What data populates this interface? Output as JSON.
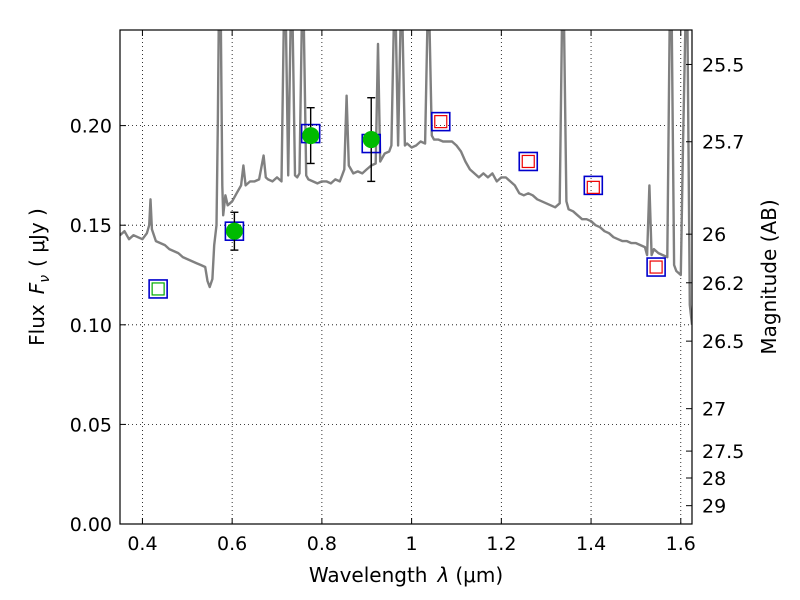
{
  "chart_data": {
    "type": "scatter",
    "xlabel": "Wavelength",
    "xlabel_symbol": "λ",
    "xlabel_unit": "(μm)",
    "ylabel": "Flux",
    "ylabel_symbol": "F",
    "ylabel_symbol_sub": "ν",
    "ylabel_unit": "( μJy )",
    "y2label": "Magnitude (AB)",
    "xlim": [
      0.35,
      1.625
    ],
    "ylim": [
      0.0,
      0.248
    ],
    "x_ticks": [
      0.4,
      0.6,
      0.8,
      1.0,
      1.2,
      1.4,
      1.6
    ],
    "x_tick_labels": [
      "0.4",
      "0.6",
      "0.8",
      "1",
      "1.2",
      "1.4",
      "1.6"
    ],
    "y_ticks": [
      0.0,
      0.05,
      0.1,
      0.15,
      0.2
    ],
    "y_tick_labels": [
      "0.00",
      "0.05",
      "0.10",
      "0.15",
      "0.20"
    ],
    "y2_ticks": [
      {
        "label": "25.5",
        "flux": 0.2307
      },
      {
        "label": "25.7",
        "flux": 0.1919
      },
      {
        "label": "26",
        "flux": 0.1455
      },
      {
        "label": "26.2",
        "flux": 0.1211
      },
      {
        "label": "26.5",
        "flux": 0.0918
      },
      {
        "label": "27",
        "flux": 0.0579
      },
      {
        "label": "27.5",
        "flux": 0.0366
      },
      {
        "label": "28",
        "flux": 0.0231
      },
      {
        "label": "29",
        "flux": 0.0092
      }
    ],
    "grid": true,
    "grid_style": "dotted",
    "series": [
      {
        "kind": "model-spectrum",
        "color": "#808080",
        "points": [
          [
            0.35,
            0.145
          ],
          [
            0.36,
            0.147
          ],
          [
            0.37,
            0.143
          ],
          [
            0.38,
            0.145
          ],
          [
            0.39,
            0.144
          ],
          [
            0.4,
            0.143
          ],
          [
            0.41,
            0.146
          ],
          [
            0.415,
            0.15
          ],
          [
            0.418,
            0.163
          ],
          [
            0.421,
            0.148
          ],
          [
            0.43,
            0.142
          ],
          [
            0.44,
            0.141
          ],
          [
            0.45,
            0.14
          ],
          [
            0.46,
            0.138
          ],
          [
            0.47,
            0.137
          ],
          [
            0.48,
            0.136
          ],
          [
            0.49,
            0.134
          ],
          [
            0.5,
            0.133
          ],
          [
            0.51,
            0.132
          ],
          [
            0.52,
            0.131
          ],
          [
            0.53,
            0.13
          ],
          [
            0.54,
            0.129
          ],
          [
            0.545,
            0.122
          ],
          [
            0.55,
            0.119
          ],
          [
            0.556,
            0.123
          ],
          [
            0.56,
            0.14
          ],
          [
            0.565,
            0.15
          ],
          [
            0.568,
            0.2
          ],
          [
            0.57,
            0.248
          ],
          [
            0.575,
            0.248
          ],
          [
            0.578,
            0.17
          ],
          [
            0.58,
            0.155
          ],
          [
            0.585,
            0.165
          ],
          [
            0.59,
            0.16
          ],
          [
            0.6,
            0.162
          ],
          [
            0.61,
            0.166
          ],
          [
            0.62,
            0.17
          ],
          [
            0.625,
            0.18
          ],
          [
            0.63,
            0.17
          ],
          [
            0.64,
            0.172
          ],
          [
            0.65,
            0.172
          ],
          [
            0.66,
            0.173
          ],
          [
            0.67,
            0.185
          ],
          [
            0.675,
            0.174
          ],
          [
            0.68,
            0.173
          ],
          [
            0.69,
            0.172
          ],
          [
            0.7,
            0.174
          ],
          [
            0.71,
            0.172
          ],
          [
            0.715,
            0.248
          ],
          [
            0.72,
            0.248
          ],
          [
            0.725,
            0.175
          ],
          [
            0.73,
            0.248
          ],
          [
            0.735,
            0.248
          ],
          [
            0.74,
            0.175
          ],
          [
            0.745,
            0.174
          ],
          [
            0.75,
            0.176
          ],
          [
            0.755,
            0.248
          ],
          [
            0.76,
            0.248
          ],
          [
            0.765,
            0.175
          ],
          [
            0.77,
            0.173
          ],
          [
            0.78,
            0.172
          ],
          [
            0.79,
            0.171
          ],
          [
            0.8,
            0.172
          ],
          [
            0.81,
            0.172
          ],
          [
            0.82,
            0.171
          ],
          [
            0.83,
            0.173
          ],
          [
            0.84,
            0.172
          ],
          [
            0.845,
            0.175
          ],
          [
            0.85,
            0.178
          ],
          [
            0.855,
            0.215
          ],
          [
            0.86,
            0.18
          ],
          [
            0.87,
            0.176
          ],
          [
            0.88,
            0.177
          ],
          [
            0.89,
            0.176
          ],
          [
            0.9,
            0.178
          ],
          [
            0.91,
            0.18
          ],
          [
            0.92,
            0.181
          ],
          [
            0.925,
            0.241
          ],
          [
            0.93,
            0.182
          ],
          [
            0.94,
            0.186
          ],
          [
            0.95,
            0.187
          ],
          [
            0.955,
            0.19
          ],
          [
            0.96,
            0.248
          ],
          [
            0.965,
            0.248
          ],
          [
            0.97,
            0.19
          ],
          [
            0.975,
            0.248
          ],
          [
            0.98,
            0.248
          ],
          [
            0.985,
            0.19
          ],
          [
            0.99,
            0.191
          ],
          [
            1.0,
            0.189
          ],
          [
            1.01,
            0.19
          ],
          [
            1.02,
            0.192
          ],
          [
            1.03,
            0.191
          ],
          [
            1.035,
            0.248
          ],
          [
            1.04,
            0.248
          ],
          [
            1.045,
            0.195
          ],
          [
            1.05,
            0.193
          ],
          [
            1.06,
            0.193
          ],
          [
            1.07,
            0.192
          ],
          [
            1.08,
            0.192
          ],
          [
            1.09,
            0.192
          ],
          [
            1.1,
            0.19
          ],
          [
            1.11,
            0.187
          ],
          [
            1.12,
            0.182
          ],
          [
            1.13,
            0.178
          ],
          [
            1.14,
            0.176
          ],
          [
            1.15,
            0.174
          ],
          [
            1.16,
            0.176
          ],
          [
            1.17,
            0.174
          ],
          [
            1.18,
            0.176
          ],
          [
            1.19,
            0.172
          ],
          [
            1.2,
            0.174
          ],
          [
            1.21,
            0.174
          ],
          [
            1.22,
            0.172
          ],
          [
            1.23,
            0.17
          ],
          [
            1.24,
            0.166
          ],
          [
            1.25,
            0.165
          ],
          [
            1.26,
            0.166
          ],
          [
            1.27,
            0.165
          ],
          [
            1.28,
            0.163
          ],
          [
            1.29,
            0.162
          ],
          [
            1.3,
            0.161
          ],
          [
            1.31,
            0.16
          ],
          [
            1.32,
            0.159
          ],
          [
            1.33,
            0.161
          ],
          [
            1.335,
            0.248
          ],
          [
            1.34,
            0.248
          ],
          [
            1.345,
            0.162
          ],
          [
            1.35,
            0.158
          ],
          [
            1.36,
            0.157
          ],
          [
            1.37,
            0.155
          ],
          [
            1.38,
            0.153
          ],
          [
            1.39,
            0.153
          ],
          [
            1.4,
            0.152
          ],
          [
            1.41,
            0.15
          ],
          [
            1.42,
            0.149
          ],
          [
            1.43,
            0.147
          ],
          [
            1.44,
            0.146
          ],
          [
            1.45,
            0.144
          ],
          [
            1.46,
            0.143
          ],
          [
            1.47,
            0.142
          ],
          [
            1.48,
            0.142
          ],
          [
            1.49,
            0.141
          ],
          [
            1.5,
            0.141
          ],
          [
            1.51,
            0.14
          ],
          [
            1.52,
            0.139
          ],
          [
            1.525,
            0.135
          ],
          [
            1.53,
            0.17
          ],
          [
            1.535,
            0.135
          ],
          [
            1.54,
            0.138
          ],
          [
            1.55,
            0.136
          ],
          [
            1.56,
            0.135
          ],
          [
            1.57,
            0.134
          ],
          [
            1.575,
            0.248
          ],
          [
            1.58,
            0.248
          ],
          [
            1.585,
            0.13
          ],
          [
            1.59,
            0.127
          ],
          [
            1.6,
            0.125
          ],
          [
            1.605,
            0.19
          ],
          [
            1.61,
            0.248
          ],
          [
            1.615,
            0.248
          ],
          [
            1.62,
            0.11
          ],
          [
            1.625,
            0.1
          ]
        ]
      },
      {
        "kind": "model-photometry",
        "marker": "square",
        "edge_color": "#0000cc",
        "points": [
          [
            0.435,
            0.118
          ],
          [
            0.605,
            0.147
          ],
          [
            0.775,
            0.196
          ],
          [
            0.91,
            0.191
          ],
          [
            1.065,
            0.202
          ],
          [
            1.26,
            0.182
          ],
          [
            1.405,
            0.17
          ],
          [
            1.545,
            0.129
          ]
        ]
      },
      {
        "kind": "observed-photometry",
        "marker": "circle",
        "color": "#00bb00",
        "points": [
          {
            "x": 0.605,
            "y": 0.147,
            "yerr": 0.0095
          },
          {
            "x": 0.775,
            "y": 0.195,
            "yerr": 0.014
          },
          {
            "x": 0.91,
            "y": 0.193,
            "yerr": 0.021
          }
        ]
      },
      {
        "kind": "upper-limit-photometry",
        "marker": "open-square",
        "points": [
          {
            "x": 0.435,
            "y": 0.118,
            "color": "#00aa00"
          },
          {
            "x": 1.065,
            "y": 0.202,
            "color": "#ee0000"
          },
          {
            "x": 1.26,
            "y": 0.182,
            "color": "#ee0000"
          },
          {
            "x": 1.405,
            "y": 0.169,
            "color": "#ee0000"
          },
          {
            "x": 1.545,
            "y": 0.129,
            "color": "#ee0000"
          }
        ]
      }
    ]
  }
}
